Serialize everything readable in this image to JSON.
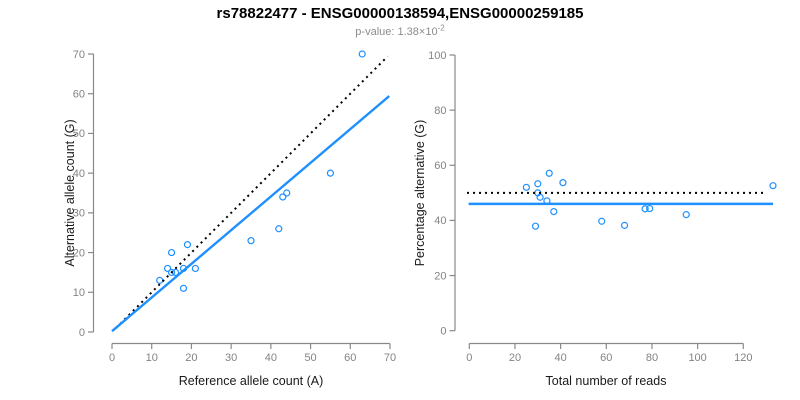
{
  "header": {
    "title": "rs78822477 - ENSG00000138594,ENSG00000259185",
    "subtitle_text": "p-value: 1.38×10",
    "subtitle_exponent": "-2"
  },
  "colors": {
    "accent": "#1E90FF",
    "dotted_line": "#000000",
    "axis": "#898989",
    "tick_label": "#838383",
    "axis_title": "#1a1a1a",
    "title": "#000000",
    "subtitle": "#8c8c8c"
  },
  "chart_data": [
    {
      "type": "scatter",
      "title": "rs78822477 - ENSG00000138594,ENSG00000259185",
      "subtitle": "p-value: 1.38×10^-2",
      "xlabel": "Reference allele count (A)",
      "ylabel": "Alternative allele count (G)",
      "xlim": [
        0,
        70
      ],
      "ylim": [
        0,
        70
      ],
      "xticks": [
        0,
        10,
        20,
        30,
        40,
        50,
        60,
        70
      ],
      "yticks": [
        0,
        10,
        20,
        30,
        40,
        50,
        60,
        70
      ],
      "grid": false,
      "legend": "none",
      "marker": "open-circle",
      "points": [
        [
          63,
          70
        ],
        [
          55,
          40
        ],
        [
          44,
          35
        ],
        [
          43,
          34
        ],
        [
          42,
          26
        ],
        [
          35,
          23
        ],
        [
          19,
          22
        ],
        [
          15,
          20
        ],
        [
          21,
          16
        ],
        [
          18,
          16
        ],
        [
          16,
          15
        ],
        [
          15,
          15
        ],
        [
          14,
          16
        ],
        [
          12,
          13
        ],
        [
          18,
          11
        ]
      ],
      "lines": [
        {
          "name": "identity",
          "style": "dotted",
          "color": "#000000",
          "from": [
            1,
            1
          ],
          "to": [
            69.4,
            69.4
          ]
        },
        {
          "name": "regression",
          "style": "solid",
          "color": "#1E90FF",
          "from": [
            0,
            0.2
          ],
          "to": [
            69.8,
            59.4
          ]
        }
      ]
    },
    {
      "type": "scatter",
      "xlabel": "Total number of reads",
      "ylabel": "Percentage alternative (G)",
      "xlim": [
        0,
        135
      ],
      "ylim": [
        0,
        100
      ],
      "xticks": [
        0,
        20,
        40,
        60,
        80,
        100,
        120
      ],
      "yticks": [
        0,
        20,
        40,
        60,
        80,
        100
      ],
      "grid": false,
      "legend": "none",
      "marker": "open-circle",
      "points": [
        [
          133,
          52.6
        ],
        [
          95,
          42.1
        ],
        [
          79,
          44.3
        ],
        [
          77,
          44.2
        ],
        [
          68,
          38.2
        ],
        [
          58,
          39.7
        ],
        [
          41,
          53.7
        ],
        [
          35,
          57.1
        ],
        [
          37,
          43.2
        ],
        [
          34,
          47.1
        ],
        [
          31,
          48.4
        ],
        [
          30,
          50.0
        ],
        [
          30,
          53.3
        ],
        [
          25,
          52.0
        ],
        [
          29,
          37.9
        ]
      ],
      "lines": [
        {
          "name": "expected-50pct",
          "style": "dotted",
          "color": "#000000",
          "y": 50,
          "xspan": [
            -1,
            130
          ]
        },
        {
          "name": "mean-percentage",
          "style": "solid",
          "color": "#1E90FF",
          "y": 46,
          "xspan": [
            -0.3,
            133
          ]
        }
      ]
    }
  ]
}
